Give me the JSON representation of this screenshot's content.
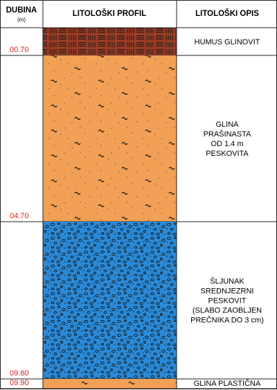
{
  "header": {
    "depth": "DUBINA",
    "unit": "(m)",
    "profile": "LITOLOŠKI PROFIL",
    "description": "LITOLOŠKI OPIS"
  },
  "layers": [
    {
      "depth": "00.70",
      "description": [
        "HUMUS GLINOVIT"
      ]
    },
    {
      "depth": "04.70",
      "description": [
        "GLINA",
        "PRAŠINASTA",
        "OD 1.4 m",
        "PESKOVITA"
      ]
    },
    {
      "depth": "09.80",
      "description": [
        "ŠLJUNAK",
        "SREDNJEZRNI",
        "PESKOVIT",
        "(SLABO ZAOBLJEN",
        "PREČNIKA DO 3 cm)"
      ]
    },
    {
      "depth": "09.90",
      "description": [
        "GLINA PLASTIČNA"
      ]
    }
  ]
}
